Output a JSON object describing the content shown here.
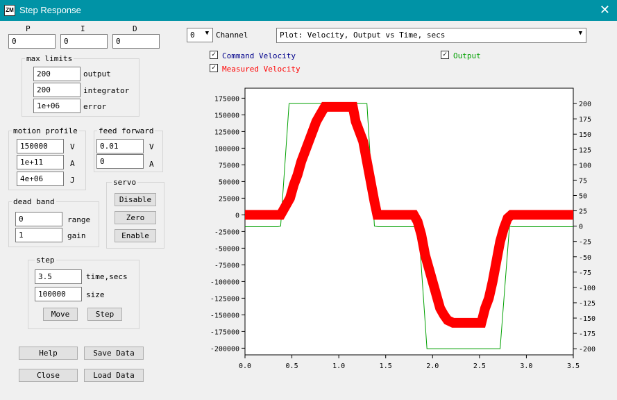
{
  "window": {
    "title": "Step Response",
    "close_glyph": "✕",
    "icon_text": "ZM"
  },
  "pid": {
    "p_label": "P",
    "i_label": "I",
    "d_label": "D",
    "p_value": "0",
    "i_value": "0",
    "d_value": "0"
  },
  "max_limits": {
    "title": "max limits",
    "output_value": "200",
    "output_label": "output",
    "integrator_value": "200",
    "integrator_label": "integrator",
    "error_value": "1e+06",
    "error_label": "error"
  },
  "motion_profile": {
    "title": "motion profile",
    "v_value": "150000",
    "v_label": "V",
    "a_value": "1e+11",
    "a_label": "A",
    "j_value": "4e+06",
    "j_label": "J"
  },
  "feed_forward": {
    "title": "feed forward",
    "v_value": "0.01",
    "v_label": "V",
    "a_value": "0",
    "a_label": "A"
  },
  "servo": {
    "title": "servo",
    "disable": "Disable",
    "zero": "Zero",
    "enable": "Enable"
  },
  "dead_band": {
    "title": "dead band",
    "range_value": "0",
    "range_label": "range",
    "gain_value": "1",
    "gain_label": "gain"
  },
  "step": {
    "title": "step",
    "time_value": "3.5",
    "time_label": "time,secs",
    "size_value": "100000",
    "size_label": "size",
    "move": "Move",
    "step": "Step"
  },
  "buttons": {
    "help": "Help",
    "save_data": "Save Data",
    "close": "Close",
    "load_data": "Load Data"
  },
  "channel": {
    "value": "0",
    "label": "Channel"
  },
  "plot_select": {
    "value": "Plot: Velocity, Output vs Time, secs"
  },
  "checkboxes": {
    "command_velocity": "Command Velocity",
    "output": "Output",
    "measured_velocity": "Measured Velocity",
    "check_glyph": "✓"
  },
  "colors": {
    "titlebar": "#0093a6",
    "command": "#00008b",
    "measured": "#ff0000",
    "output": "#00a000"
  },
  "chart_data": {
    "type": "line",
    "x_ticks": [
      "0.0",
      "0.5",
      "1.0",
      "1.5",
      "2.0",
      "2.5",
      "3.0",
      "3.5"
    ],
    "xlim": [
      0,
      3.5
    ],
    "y_left_ticks": [
      "175000",
      "150000",
      "125000",
      "100000",
      "75000",
      "50000",
      "25000",
      "0",
      "-25000",
      "-50000",
      "-75000",
      "-100000",
      "-125000",
      "-150000",
      "-175000",
      "-200000"
    ],
    "y_left_lim": [
      -210000,
      190000
    ],
    "y_right_ticks": [
      "200",
      "175",
      "150",
      "125",
      "100",
      "75",
      "50",
      "25",
      "0",
      "-25",
      "-50",
      "-75",
      "-100",
      "-125",
      "-150",
      "-175",
      "-200"
    ],
    "y_right_lim": [
      -210,
      225
    ],
    "series": [
      {
        "name": "Output",
        "axis": "right",
        "x": [
          0,
          0.35,
          0.38,
          0.47,
          1.3,
          1.38,
          1.42,
          1.81,
          1.85,
          1.94,
          2.72,
          2.82,
          2.85,
          3.5
        ],
        "y": [
          -1,
          -1,
          0,
          200,
          200,
          0,
          -1,
          -1,
          0,
          -200,
          -200,
          0,
          -1,
          -1
        ]
      },
      {
        "name": "Measured Velocity",
        "axis": "left",
        "x": [
          0,
          0.38,
          0.42,
          0.48,
          0.52,
          0.56,
          0.6,
          0.64,
          0.68,
          0.72,
          0.76,
          0.8,
          0.85,
          1.15,
          1.18,
          1.22,
          1.26,
          1.3,
          1.34,
          1.38,
          1.41,
          1.8,
          1.84,
          1.88,
          1.92,
          1.96,
          2.0,
          2.04,
          2.08,
          2.12,
          2.16,
          2.22,
          2.52,
          2.56,
          2.6,
          2.64,
          2.68,
          2.72,
          2.76,
          2.8,
          2.84,
          3.5
        ],
        "y": [
          0,
          0,
          10000,
          25000,
          45000,
          60000,
          80000,
          95000,
          110000,
          125000,
          140000,
          150000,
          162000,
          162000,
          140000,
          125000,
          110000,
          80000,
          50000,
          20000,
          0,
          0,
          -10000,
          -30000,
          -60000,
          -80000,
          -100000,
          -120000,
          -140000,
          -150000,
          -158000,
          -162000,
          -162000,
          -140000,
          -125000,
          -100000,
          -70000,
          -40000,
          -20000,
          -5000,
          0,
          0
        ]
      }
    ]
  }
}
